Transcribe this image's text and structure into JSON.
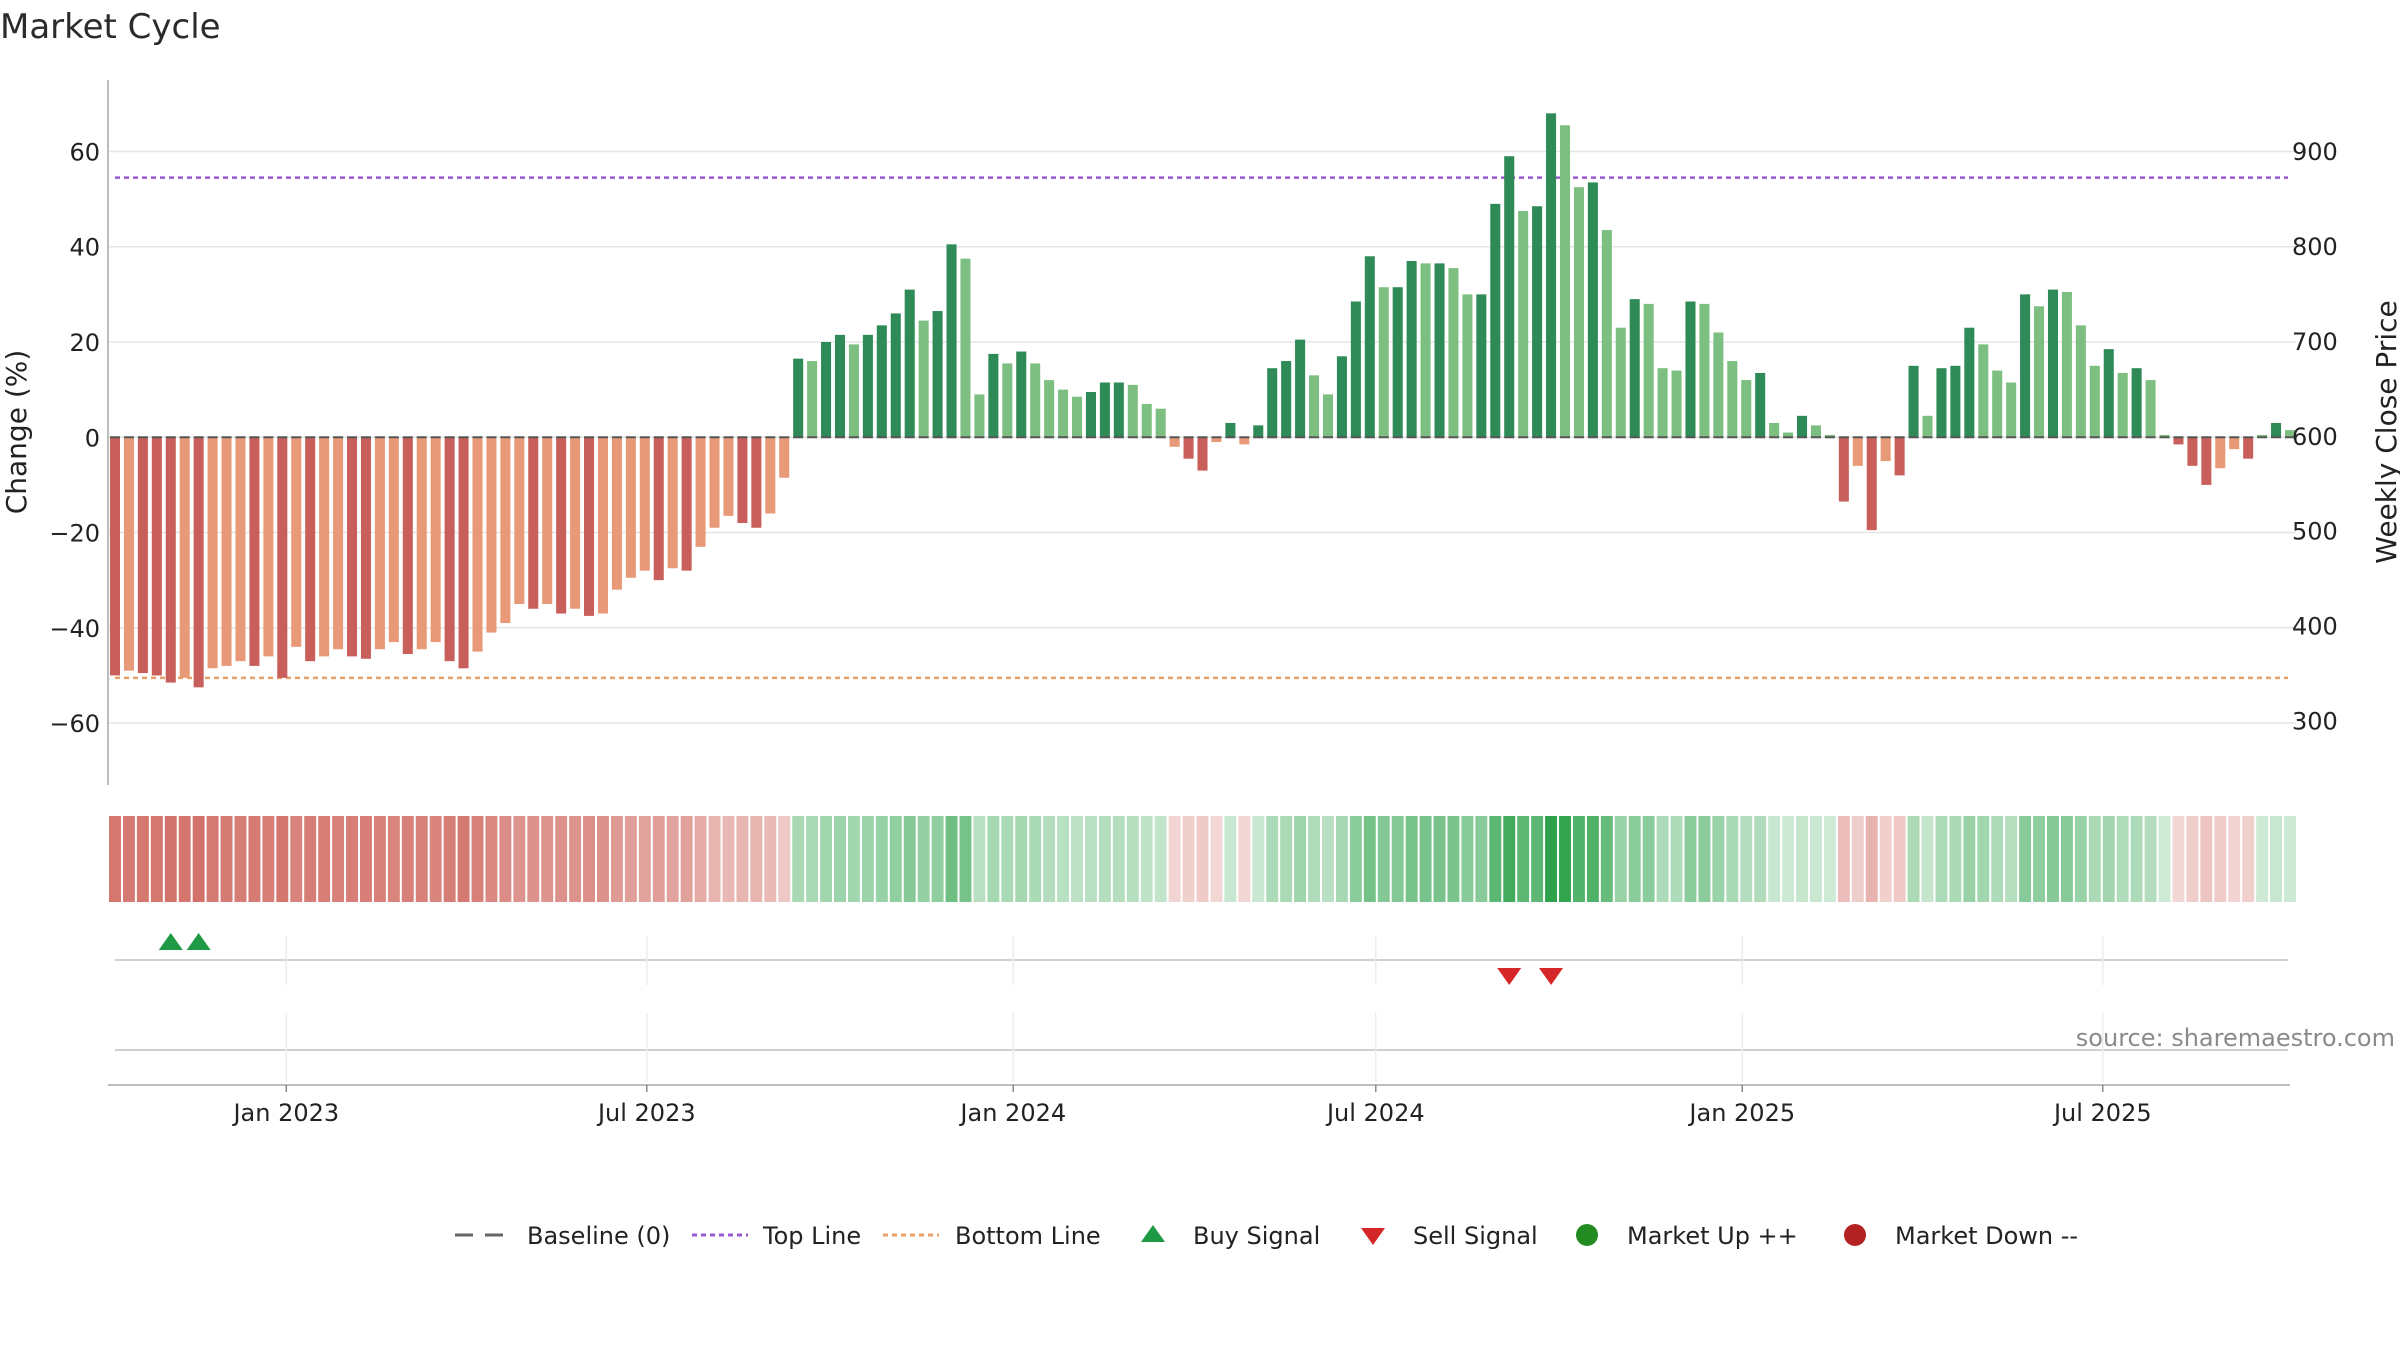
{
  "title": "Market Cycle",
  "source": "source: sharemaestro.com",
  "chart_data": {
    "type": "bar",
    "ylabel_left": "Change (%)",
    "ylabel_right": "Weekly Close Price",
    "ylim_left": [
      -73,
      75
    ],
    "ylim_right": [
      232,
      975
    ],
    "yticks_left": [
      60,
      40,
      20,
      0,
      -20,
      -40,
      -60
    ],
    "ytick_labels_left": [
      "60",
      "40",
      "20",
      "0",
      "−20",
      "−40",
      "−60"
    ],
    "yticks_right": [
      900,
      800,
      700,
      600,
      500,
      400,
      300
    ],
    "ytick_labels_right": [
      "900",
      "800",
      "700",
      "600",
      "500",
      "400",
      "300"
    ],
    "top_line": 54.5,
    "bottom_line": -50.5,
    "baseline": 0,
    "x_start": "2022-10-07",
    "week_days": 7,
    "xticks": [
      {
        "date": "2023-01-01",
        "label": "Jan 2023"
      },
      {
        "date": "2023-07-01",
        "label": "Jul 2023"
      },
      {
        "date": "2024-01-01",
        "label": "Jan 2024"
      },
      {
        "date": "2024-07-01",
        "label": "Jul 2024"
      },
      {
        "date": "2025-01-01",
        "label": "Jan 2025"
      },
      {
        "date": "2025-07-01",
        "label": "Jul 2025"
      }
    ],
    "values": [
      -50,
      -49,
      -49.5,
      -50,
      -51.5,
      -50.5,
      -52.5,
      -48.5,
      -48,
      -47,
      -48,
      -46,
      -50.5,
      -44,
      -47,
      -46,
      -44.5,
      -46,
      -46.5,
      -44.5,
      -43,
      -45.5,
      -44.5,
      -43,
      -47,
      -48.5,
      -45,
      -41,
      -39,
      -35,
      -36,
      -35,
      -37,
      -36,
      -37.5,
      -37,
      -32,
      -29.5,
      -28,
      -30,
      -27.5,
      -28,
      -23,
      -19,
      -16.5,
      -18,
      -19,
      -16,
      -8.5,
      16.5,
      16,
      20,
      21.5,
      19.5,
      21.5,
      23.5,
      26,
      31,
      24.5,
      26.5,
      40.5,
      37.5,
      9,
      17.5,
      15.5,
      18,
      15.5,
      12,
      10,
      8.5,
      9.5,
      11.5,
      11.5,
      11,
      7,
      6,
      -2,
      -4.5,
      -7,
      -1,
      3,
      -1.5,
      2.5,
      14.5,
      16,
      20.5,
      13,
      9,
      17,
      28.5,
      38,
      31.5,
      31.5,
      37,
      36.5,
      36.5,
      35.5,
      30,
      30,
      49,
      59,
      47.5,
      48.5,
      68,
      65.5,
      52.5,
      53.5,
      43.5,
      23,
      29,
      28,
      14.5,
      14,
      28.5,
      28,
      22,
      16,
      12,
      13.5,
      3,
      1,
      4.5,
      2.5,
      0.5,
      -13.5,
      -6,
      -19.5,
      -5,
      -8,
      15,
      4.5,
      14.5,
      15,
      23,
      19.5,
      14,
      11.5,
      30,
      27.5,
      31,
      30.5,
      23.5,
      15,
      18.5,
      13.5,
      14.5,
      12,
      0.5,
      -1.5,
      -6,
      -10,
      -6.5,
      -2.5,
      -4.5,
      0.5,
      3,
      1.5
    ],
    "buy_signals": [
      4,
      6
    ],
    "sell_signals": [
      100,
      103
    ],
    "legend": [
      {
        "label": "Baseline (0)",
        "symbol": "dash",
        "color": "#666666"
      },
      {
        "label": "Top Line",
        "symbol": "dotted",
        "color": "#9b59d0"
      },
      {
        "label": "Bottom Line",
        "symbol": "dotted",
        "color": "#e8a06a"
      },
      {
        "label": "Buy Signal",
        "symbol": "triangle-up",
        "color": "#1e9a44"
      },
      {
        "label": "Sell Signal",
        "symbol": "triangle-down",
        "color": "#d62728"
      },
      {
        "label": "Market Up ++",
        "symbol": "circle",
        "color": "#228b22"
      },
      {
        "label": "Market Down --",
        "symbol": "circle",
        "color": "#b22222"
      }
    ],
    "colors": {
      "up_strong": "#2e8a57",
      "up_light": "#7dbf80",
      "down_strong": "#c95f5a",
      "down_light": "#e89a78",
      "top_line": "#9b59d0",
      "bottom_line": "#e8a06a",
      "grid": "#e5e5e5"
    }
  }
}
